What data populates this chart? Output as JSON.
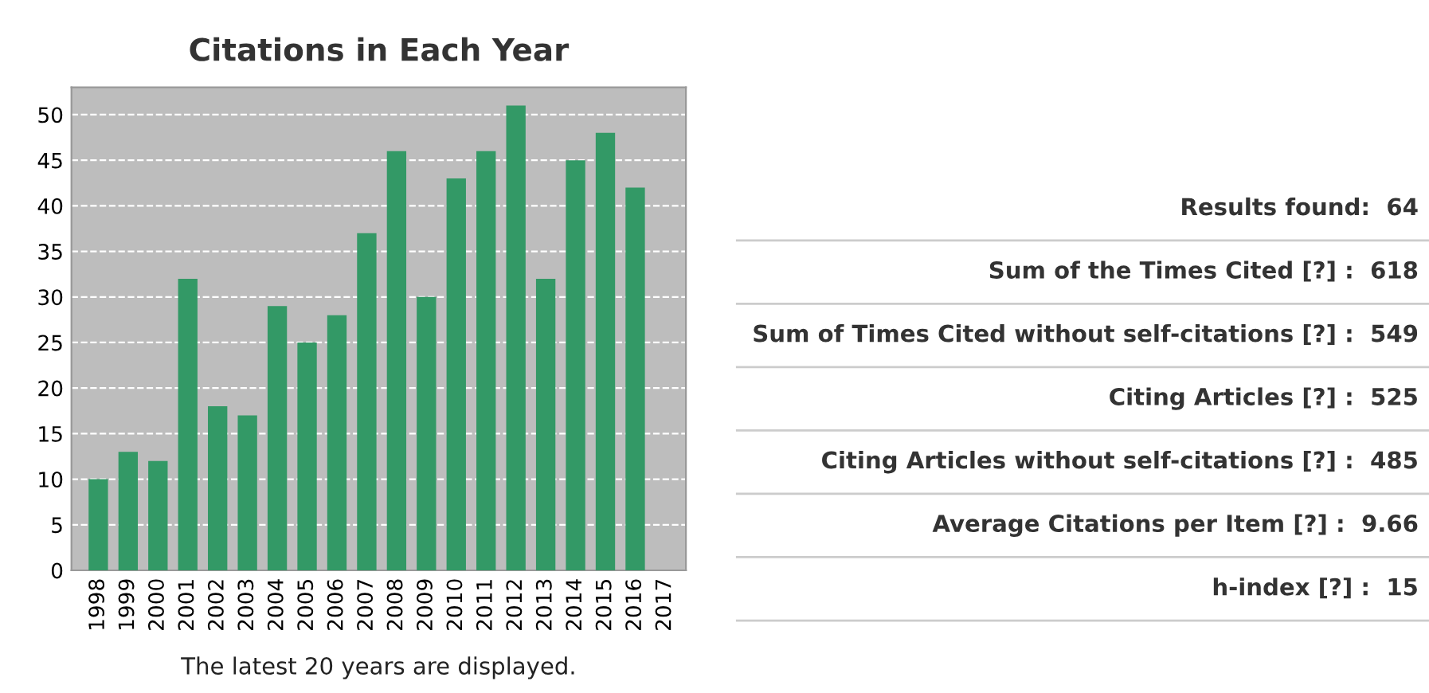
{
  "chart_data": [
    {
      "type": "bar",
      "title": "Citations in Each Year",
      "categories": [
        "1998",
        "1999",
        "2000",
        "2001",
        "2002",
        "2003",
        "2004",
        "2005",
        "2006",
        "2007",
        "2008",
        "2009",
        "2010",
        "2011",
        "2012",
        "2013",
        "2014",
        "2015",
        "2016",
        "2017"
      ],
      "values": [
        10,
        13,
        12,
        32,
        18,
        17,
        29,
        25,
        28,
        37,
        46,
        30,
        43,
        46,
        51,
        32,
        45,
        48,
        42,
        null
      ],
      "color": "#339966",
      "ylim": [
        0,
        53
      ],
      "yticks": [
        0,
        5,
        10,
        15,
        20,
        25,
        30,
        35,
        40,
        45,
        50
      ],
      "grid": "y",
      "legend": false,
      "annotations": [
        "The latest 20 years are displayed."
      ]
    },
    {
      "type": "other",
      "annotations": [
        "Results found:  64",
        "Sum of the Times Cited [?] :  618",
        "Sum of Times Cited without self-citations [?] :  549",
        "Citing Articles [?] :  525",
        "Citing Articles without self-citations [?] :  485",
        "Average Citations per Item [?] :  9.66",
        "h-index [?] :  15"
      ]
    }
  ]
}
